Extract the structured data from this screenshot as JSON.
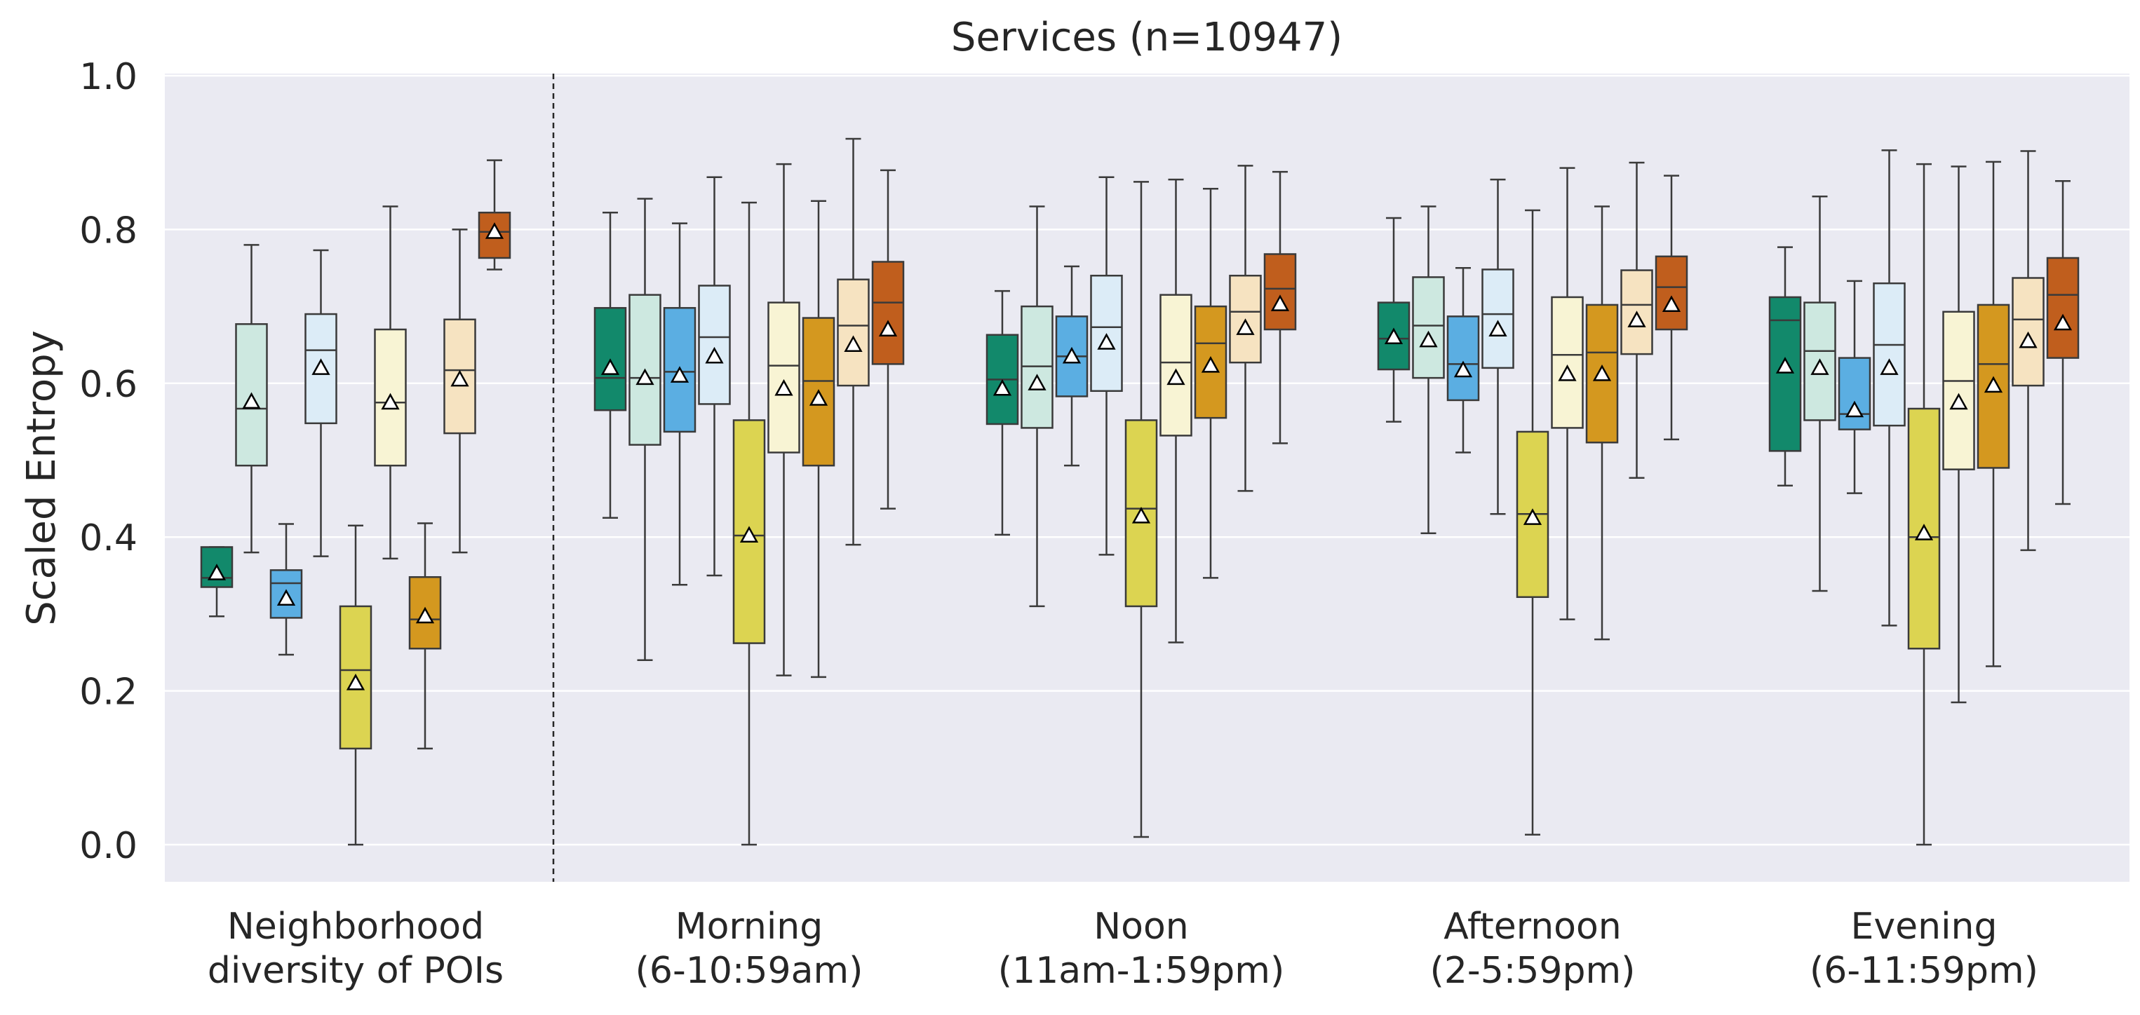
{
  "chart_data": {
    "type": "box",
    "title": "Services (n=10947)",
    "ylabel": "Scaled Entropy",
    "xlabel": "",
    "ylim": [
      -0.05,
      1.0
    ],
    "yticks": [
      "0.0",
      "0.2",
      "0.4",
      "0.6",
      "0.8",
      "1.0"
    ],
    "grid": true,
    "legend": "none",
    "mean_marker": "triangle",
    "palette": [
      "#12896b",
      "#cde8e0",
      "#5baee2",
      "#dcecf7",
      "#dcd451",
      "#f8f4d4",
      "#d4981f",
      "#f6e3c1",
      "#c05e1d"
    ],
    "groups": [
      {
        "label": [
          "Neighborhood",
          "diversity of POIs"
        ],
        "boxes": [
          {
            "whislo": 0.297,
            "q1": 0.335,
            "med": 0.347,
            "q3": 0.387,
            "whishi": 0.387,
            "mean": 0.353
          },
          {
            "whislo": 0.38,
            "q1": 0.493,
            "med": 0.567,
            "q3": 0.677,
            "whishi": 0.78,
            "mean": 0.576
          },
          {
            "whislo": 0.247,
            "q1": 0.295,
            "med": 0.34,
            "q3": 0.357,
            "whishi": 0.417,
            "mean": 0.32
          },
          {
            "whislo": 0.375,
            "q1": 0.548,
            "med": 0.643,
            "q3": 0.69,
            "whishi": 0.773,
            "mean": 0.62
          },
          {
            "whislo": 0.0,
            "q1": 0.125,
            "med": 0.227,
            "q3": 0.31,
            "whishi": 0.415,
            "mean": 0.21
          },
          {
            "whislo": 0.372,
            "q1": 0.493,
            "med": 0.575,
            "q3": 0.67,
            "whishi": 0.83,
            "mean": 0.575
          },
          {
            "whislo": 0.125,
            "q1": 0.255,
            "med": 0.293,
            "q3": 0.348,
            "whishi": 0.418,
            "mean": 0.297
          },
          {
            "whislo": 0.38,
            "q1": 0.535,
            "med": 0.617,
            "q3": 0.683,
            "whishi": 0.8,
            "mean": 0.605
          },
          {
            "whislo": 0.748,
            "q1": 0.763,
            "med": 0.797,
            "q3": 0.822,
            "whishi": 0.89,
            "mean": 0.797
          }
        ]
      },
      {
        "label": [
          "Morning",
          "(6-10:59am)"
        ],
        "boxes": [
          {
            "whislo": 0.425,
            "q1": 0.565,
            "med": 0.607,
            "q3": 0.698,
            "whishi": 0.822,
            "mean": 0.62
          },
          {
            "whislo": 0.24,
            "q1": 0.52,
            "med": 0.607,
            "q3": 0.715,
            "whishi": 0.84,
            "mean": 0.607
          },
          {
            "whislo": 0.338,
            "q1": 0.537,
            "med": 0.615,
            "q3": 0.698,
            "whishi": 0.808,
            "mean": 0.61
          },
          {
            "whislo": 0.35,
            "q1": 0.573,
            "med": 0.66,
            "q3": 0.727,
            "whishi": 0.868,
            "mean": 0.635
          },
          {
            "whislo": 0.0,
            "q1": 0.262,
            "med": 0.402,
            "q3": 0.552,
            "whishi": 0.835,
            "mean": 0.402
          },
          {
            "whislo": 0.22,
            "q1": 0.51,
            "med": 0.623,
            "q3": 0.705,
            "whishi": 0.885,
            "mean": 0.593
          },
          {
            "whislo": 0.218,
            "q1": 0.493,
            "med": 0.603,
            "q3": 0.685,
            "whishi": 0.837,
            "mean": 0.58
          },
          {
            "whislo": 0.39,
            "q1": 0.597,
            "med": 0.675,
            "q3": 0.735,
            "whishi": 0.918,
            "mean": 0.65
          },
          {
            "whislo": 0.437,
            "q1": 0.625,
            "med": 0.705,
            "q3": 0.758,
            "whishi": 0.877,
            "mean": 0.67
          }
        ]
      },
      {
        "label": [
          "Noon",
          "(11am-1:59pm)"
        ],
        "boxes": [
          {
            "whislo": 0.403,
            "q1": 0.547,
            "med": 0.605,
            "q3": 0.663,
            "whishi": 0.72,
            "mean": 0.593
          },
          {
            "whislo": 0.31,
            "q1": 0.542,
            "med": 0.622,
            "q3": 0.7,
            "whishi": 0.83,
            "mean": 0.6
          },
          {
            "whislo": 0.493,
            "q1": 0.583,
            "med": 0.635,
            "q3": 0.687,
            "whishi": 0.752,
            "mean": 0.635
          },
          {
            "whislo": 0.377,
            "q1": 0.59,
            "med": 0.673,
            "q3": 0.74,
            "whishi": 0.868,
            "mean": 0.653
          },
          {
            "whislo": 0.01,
            "q1": 0.31,
            "med": 0.437,
            "q3": 0.552,
            "whishi": 0.862,
            "mean": 0.427
          },
          {
            "whislo": 0.263,
            "q1": 0.532,
            "med": 0.627,
            "q3": 0.715,
            "whishi": 0.865,
            "mean": 0.607
          },
          {
            "whislo": 0.347,
            "q1": 0.555,
            "med": 0.652,
            "q3": 0.7,
            "whishi": 0.853,
            "mean": 0.623
          },
          {
            "whislo": 0.46,
            "q1": 0.627,
            "med": 0.693,
            "q3": 0.74,
            "whishi": 0.883,
            "mean": 0.672
          },
          {
            "whislo": 0.522,
            "q1": 0.67,
            "med": 0.723,
            "q3": 0.768,
            "whishi": 0.875,
            "mean": 0.703
          }
        ]
      },
      {
        "label": [
          "Afternoon",
          "(2-5:59pm)"
        ],
        "boxes": [
          {
            "whislo": 0.55,
            "q1": 0.618,
            "med": 0.658,
            "q3": 0.705,
            "whishi": 0.815,
            "mean": 0.66
          },
          {
            "whislo": 0.405,
            "q1": 0.607,
            "med": 0.675,
            "q3": 0.738,
            "whishi": 0.83,
            "mean": 0.656
          },
          {
            "whislo": 0.51,
            "q1": 0.578,
            "med": 0.625,
            "q3": 0.687,
            "whishi": 0.75,
            "mean": 0.617
          },
          {
            "whislo": 0.43,
            "q1": 0.62,
            "med": 0.69,
            "q3": 0.748,
            "whishi": 0.865,
            "mean": 0.67
          },
          {
            "whislo": 0.013,
            "q1": 0.322,
            "med": 0.43,
            "q3": 0.537,
            "whishi": 0.825,
            "mean": 0.425
          },
          {
            "whislo": 0.293,
            "q1": 0.542,
            "med": 0.637,
            "q3": 0.712,
            "whishi": 0.88,
            "mean": 0.612
          },
          {
            "whislo": 0.267,
            "q1": 0.523,
            "med": 0.64,
            "q3": 0.702,
            "whishi": 0.83,
            "mean": 0.612
          },
          {
            "whislo": 0.477,
            "q1": 0.638,
            "med": 0.702,
            "q3": 0.747,
            "whishi": 0.887,
            "mean": 0.682
          },
          {
            "whislo": 0.527,
            "q1": 0.67,
            "med": 0.725,
            "q3": 0.765,
            "whishi": 0.87,
            "mean": 0.702
          }
        ]
      },
      {
        "label": [
          "Evening",
          "(6-11:59pm)"
        ],
        "boxes": [
          {
            "whislo": 0.467,
            "q1": 0.512,
            "med": 0.682,
            "q3": 0.712,
            "whishi": 0.777,
            "mean": 0.622
          },
          {
            "whislo": 0.33,
            "q1": 0.552,
            "med": 0.642,
            "q3": 0.705,
            "whishi": 0.843,
            "mean": 0.62
          },
          {
            "whislo": 0.457,
            "q1": 0.54,
            "med": 0.56,
            "q3": 0.633,
            "whishi": 0.733,
            "mean": 0.565
          },
          {
            "whislo": 0.285,
            "q1": 0.545,
            "med": 0.65,
            "q3": 0.73,
            "whishi": 0.903,
            "mean": 0.62
          },
          {
            "whislo": 0.0,
            "q1": 0.255,
            "med": 0.4,
            "q3": 0.567,
            "whishi": 0.885,
            "mean": 0.405
          },
          {
            "whislo": 0.185,
            "q1": 0.488,
            "med": 0.603,
            "q3": 0.693,
            "whishi": 0.882,
            "mean": 0.575
          },
          {
            "whislo": 0.232,
            "q1": 0.49,
            "med": 0.625,
            "q3": 0.702,
            "whishi": 0.888,
            "mean": 0.597
          },
          {
            "whislo": 0.383,
            "q1": 0.597,
            "med": 0.683,
            "q3": 0.737,
            "whishi": 0.902,
            "mean": 0.655
          },
          {
            "whislo": 0.443,
            "q1": 0.633,
            "med": 0.715,
            "q3": 0.763,
            "whishi": 0.863,
            "mean": 0.678
          }
        ]
      }
    ]
  }
}
